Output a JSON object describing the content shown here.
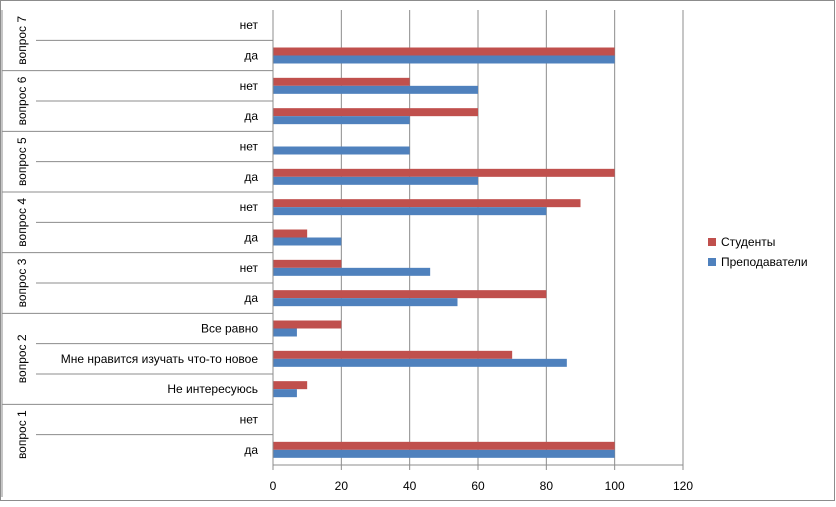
{
  "chart_data": {
    "type": "bar",
    "orientation": "horizontal",
    "xlim": [
      0,
      120
    ],
    "xticks": [
      0,
      20,
      40,
      60,
      80,
      100,
      120
    ],
    "grid": true,
    "legend_position": "right",
    "groups": [
      {
        "label": "вопрос 1",
        "categories": [
          "да",
          "нет"
        ]
      },
      {
        "label": "вопрос 2",
        "categories": [
          "Не интересуюсь",
          "Мне нравится изучать что-то новое",
          "Все равно"
        ]
      },
      {
        "label": "вопрос 3",
        "categories": [
          "да",
          "нет"
        ]
      },
      {
        "label": "вопрос 4",
        "categories": [
          "да",
          "нет"
        ]
      },
      {
        "label": "вопрос 5",
        "categories": [
          "да",
          "нет"
        ]
      },
      {
        "label": "вопрос 6",
        "categories": [
          "да",
          "нет"
        ]
      },
      {
        "label": "вопрос 7",
        "categories": [
          "да",
          "нет"
        ]
      }
    ],
    "series": [
      {
        "name": "Студенты",
        "color": "#c0504d",
        "values": [
          100,
          0,
          10,
          70,
          20,
          80,
          20,
          10,
          90,
          100,
          0,
          60,
          40,
          100,
          0
        ]
      },
      {
        "name": "Преподаватели",
        "color": "#4f81bd",
        "values": [
          100,
          0,
          7,
          86,
          7,
          54,
          46,
          20,
          80,
          60,
          40,
          40,
          60,
          100,
          0
        ]
      }
    ]
  }
}
